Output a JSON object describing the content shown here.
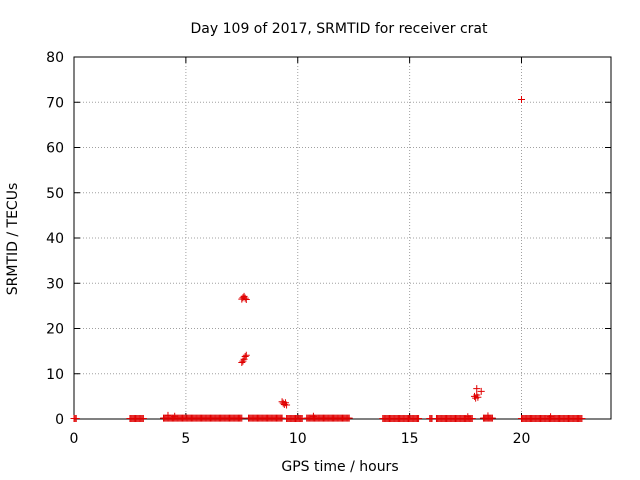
{
  "chart_data": {
    "type": "scatter",
    "title": "Day 109 of 2017, SRMTID for receiver crat",
    "xlabel": "GPS time / hours",
    "ylabel": "SRMTID / TECUs",
    "xlim": [
      0,
      24
    ],
    "ylim": [
      0,
      80
    ],
    "xticks": [
      0,
      5,
      10,
      15,
      20
    ],
    "yticks": [
      0,
      10,
      20,
      30,
      40,
      50,
      60,
      70,
      80
    ],
    "grid": true,
    "legend": "none",
    "marker": "plus",
    "color": "#e00000",
    "segments": [
      {
        "x_start": 0.0,
        "x_end": 0.1,
        "step": 0.05,
        "y": 0.1
      },
      {
        "x_start": 2.5,
        "x_end": 3.1,
        "step": 0.05,
        "y": 0.1
      },
      {
        "x_start": 4.0,
        "x_end": 7.5,
        "step": 0.05,
        "y": 0.2
      },
      {
        "x_start": 7.8,
        "x_end": 9.3,
        "step": 0.05,
        "y": 0.2
      },
      {
        "x_start": 9.5,
        "x_end": 10.2,
        "step": 0.05,
        "y": 0.1
      },
      {
        "x_start": 10.4,
        "x_end": 12.3,
        "step": 0.05,
        "y": 0.2
      },
      {
        "x_start": 13.8,
        "x_end": 15.4,
        "step": 0.05,
        "y": 0.1
      },
      {
        "x_start": 15.9,
        "x_end": 16.0,
        "step": 0.05,
        "y": 0.1
      },
      {
        "x_start": 16.2,
        "x_end": 17.8,
        "step": 0.05,
        "y": 0.1
      },
      {
        "x_start": 18.3,
        "x_end": 18.7,
        "step": 0.05,
        "y": 0.2
      },
      {
        "x_start": 20.0,
        "x_end": 22.7,
        "step": 0.05,
        "y": 0.1
      }
    ],
    "points": [
      {
        "x": 7.5,
        "y": 12.5
      },
      {
        "x": 7.55,
        "y": 12.8
      },
      {
        "x": 7.6,
        "y": 13.2
      },
      {
        "x": 7.65,
        "y": 13.8
      },
      {
        "x": 7.7,
        "y": 14.1
      },
      {
        "x": 7.5,
        "y": 26.5
      },
      {
        "x": 7.55,
        "y": 26.8
      },
      {
        "x": 7.6,
        "y": 27.1
      },
      {
        "x": 7.65,
        "y": 26.7
      },
      {
        "x": 7.7,
        "y": 26.4
      },
      {
        "x": 9.3,
        "y": 3.8
      },
      {
        "x": 9.35,
        "y": 3.5
      },
      {
        "x": 9.4,
        "y": 3.2
      },
      {
        "x": 9.45,
        "y": 3.6
      },
      {
        "x": 9.5,
        "y": 3.1
      },
      {
        "x": 17.9,
        "y": 5.0
      },
      {
        "x": 17.95,
        "y": 4.6
      },
      {
        "x": 18.0,
        "y": 5.3
      },
      {
        "x": 18.05,
        "y": 4.8
      },
      {
        "x": 18.0,
        "y": 6.7
      },
      {
        "x": 18.2,
        "y": 6.1
      },
      {
        "x": 20.0,
        "y": 70.6
      },
      {
        "x": 4.2,
        "y": 0.8
      },
      {
        "x": 4.5,
        "y": 0.6
      },
      {
        "x": 10.7,
        "y": 0.6
      },
      {
        "x": 17.6,
        "y": 0.5
      },
      {
        "x": 18.5,
        "y": 0.7
      },
      {
        "x": 21.3,
        "y": 0.5
      }
    ]
  }
}
